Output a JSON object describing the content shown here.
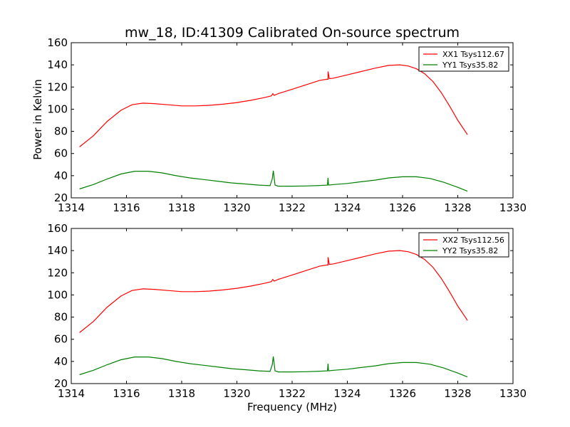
{
  "figure": {
    "title": "mw_18, ID:41309 Calibrated On-source spectrum",
    "ylabel": "Power in Kelvin",
    "xlabel": "Frequency (MHz)"
  },
  "chart_data": [
    {
      "type": "line",
      "xlim": [
        1314,
        1330
      ],
      "ylim": [
        20,
        160
      ],
      "xticks": [
        1314,
        1316,
        1318,
        1320,
        1322,
        1324,
        1326,
        1328,
        1330
      ],
      "yticks": [
        20,
        40,
        60,
        80,
        100,
        120,
        140,
        160
      ],
      "legend": "top-right",
      "series": [
        {
          "name": "XX1 Tsys112.67",
          "color": "#ff0000",
          "x": [
            1314.3,
            1314.8,
            1315.3,
            1315.8,
            1316.2,
            1316.6,
            1317.0,
            1317.5,
            1318.0,
            1318.5,
            1319.0,
            1319.5,
            1320.0,
            1320.5,
            1321.0,
            1321.25,
            1321.3,
            1321.35,
            1321.5,
            1322.0,
            1322.5,
            1323.0,
            1323.25,
            1323.3,
            1323.3,
            1323.35,
            1323.5,
            1324.0,
            1324.5,
            1325.0,
            1325.5,
            1325.9,
            1326.2,
            1326.5,
            1326.8,
            1327.1,
            1327.4,
            1327.7,
            1328.0,
            1328.35
          ],
          "y": [
            66,
            76,
            89,
            99,
            104,
            105.5,
            105,
            104,
            103,
            103,
            103.5,
            104.5,
            106,
            108,
            110.5,
            112,
            114,
            112.5,
            114,
            118,
            122,
            126,
            127,
            127,
            134,
            127.5,
            128,
            131,
            134,
            137,
            139.5,
            140,
            139,
            136.5,
            132,
            125,
            115,
            103,
            90,
            77
          ]
        },
        {
          "name": "YY1 Tsys35.82",
          "color": "#008000",
          "x": [
            1314.3,
            1314.8,
            1315.3,
            1315.8,
            1316.3,
            1316.8,
            1317.3,
            1317.8,
            1318.3,
            1318.8,
            1319.3,
            1319.8,
            1320.3,
            1320.8,
            1321.2,
            1321.28,
            1321.32,
            1321.38,
            1321.5,
            1322.0,
            1322.5,
            1323.0,
            1323.28,
            1323.3,
            1323.32,
            1323.5,
            1324.0,
            1324.5,
            1325.0,
            1325.5,
            1326.0,
            1326.5,
            1327.0,
            1327.5,
            1328.0,
            1328.35
          ],
          "y": [
            28,
            32,
            37,
            41.5,
            44,
            44,
            42.5,
            40,
            38,
            36.5,
            35,
            33.5,
            32.5,
            31.5,
            31,
            37,
            44.5,
            31.5,
            30.5,
            30.5,
            30.7,
            31.2,
            31.5,
            38,
            31.5,
            32,
            33,
            34.5,
            36,
            38,
            39,
            39,
            37.5,
            34,
            29.5,
            26
          ]
        }
      ]
    },
    {
      "type": "line",
      "xlim": [
        1314,
        1330
      ],
      "ylim": [
        20,
        160
      ],
      "xticks": [
        1314,
        1316,
        1318,
        1320,
        1322,
        1324,
        1326,
        1328,
        1330
      ],
      "yticks": [
        20,
        40,
        60,
        80,
        100,
        120,
        140,
        160
      ],
      "legend": "top-right",
      "series": [
        {
          "name": "XX2 Tsys112.56",
          "color": "#ff0000",
          "x": [
            1314.3,
            1314.8,
            1315.3,
            1315.8,
            1316.2,
            1316.6,
            1317.0,
            1317.5,
            1318.0,
            1318.5,
            1319.0,
            1319.5,
            1320.0,
            1320.5,
            1321.0,
            1321.25,
            1321.3,
            1321.35,
            1321.5,
            1322.0,
            1322.5,
            1323.0,
            1323.25,
            1323.3,
            1323.3,
            1323.35,
            1323.5,
            1324.0,
            1324.5,
            1325.0,
            1325.5,
            1325.9,
            1326.2,
            1326.5,
            1326.8,
            1327.1,
            1327.4,
            1327.7,
            1328.0,
            1328.35
          ],
          "y": [
            66,
            76,
            89,
            99,
            104,
            105.5,
            105,
            104,
            103,
            103,
            103.5,
            104.5,
            106,
            108,
            110.5,
            112,
            114,
            112.5,
            114,
            118,
            122,
            126,
            127,
            127,
            134,
            127.5,
            128,
            131,
            134,
            137,
            139.5,
            140,
            139,
            136.5,
            132,
            125,
            115,
            103,
            90,
            77
          ]
        },
        {
          "name": "YY2 Tsys35.82",
          "color": "#008000",
          "x": [
            1314.3,
            1314.8,
            1315.3,
            1315.8,
            1316.3,
            1316.8,
            1317.3,
            1317.8,
            1318.3,
            1318.8,
            1319.3,
            1319.8,
            1320.3,
            1320.8,
            1321.2,
            1321.28,
            1321.32,
            1321.38,
            1321.5,
            1322.0,
            1322.5,
            1323.0,
            1323.28,
            1323.3,
            1323.32,
            1323.5,
            1324.0,
            1324.5,
            1325.0,
            1325.5,
            1326.0,
            1326.5,
            1327.0,
            1327.5,
            1328.0,
            1328.35
          ],
          "y": [
            28,
            32,
            37,
            41.5,
            44,
            44,
            42.5,
            40,
            38,
            36.5,
            35,
            33.5,
            32.5,
            31.5,
            31,
            37,
            44.5,
            31.5,
            30.5,
            30.5,
            30.7,
            31.2,
            31.5,
            38,
            31.5,
            32,
            33,
            34.5,
            36,
            38,
            39,
            39,
            37.5,
            34,
            29.5,
            26
          ]
        }
      ]
    }
  ]
}
